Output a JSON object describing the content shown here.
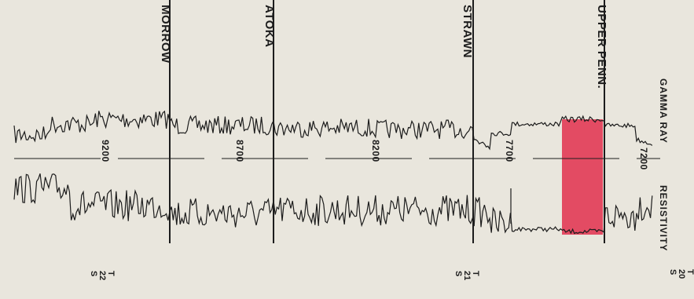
{
  "curve_labels": {
    "gamma_ray": "GAMMA RAY",
    "resistivity": "RESISTIVITY"
  },
  "formations": [
    {
      "name": "UPPER PENN."
    },
    {
      "name": "STRAWN"
    },
    {
      "name": "ATOKA"
    },
    {
      "name": "MORROW"
    }
  ],
  "depth_labels": [
    "7200",
    "7700",
    "8200",
    "8700",
    "9200"
  ],
  "townships": [
    {
      "label": "T\n20\nS"
    },
    {
      "label": "T\n21\nS"
    },
    {
      "label": "T\n22\nS"
    }
  ],
  "colors": {
    "background": "#e9e6dd",
    "ink": "#1c1c1c",
    "highlight": "#e23a55"
  }
}
